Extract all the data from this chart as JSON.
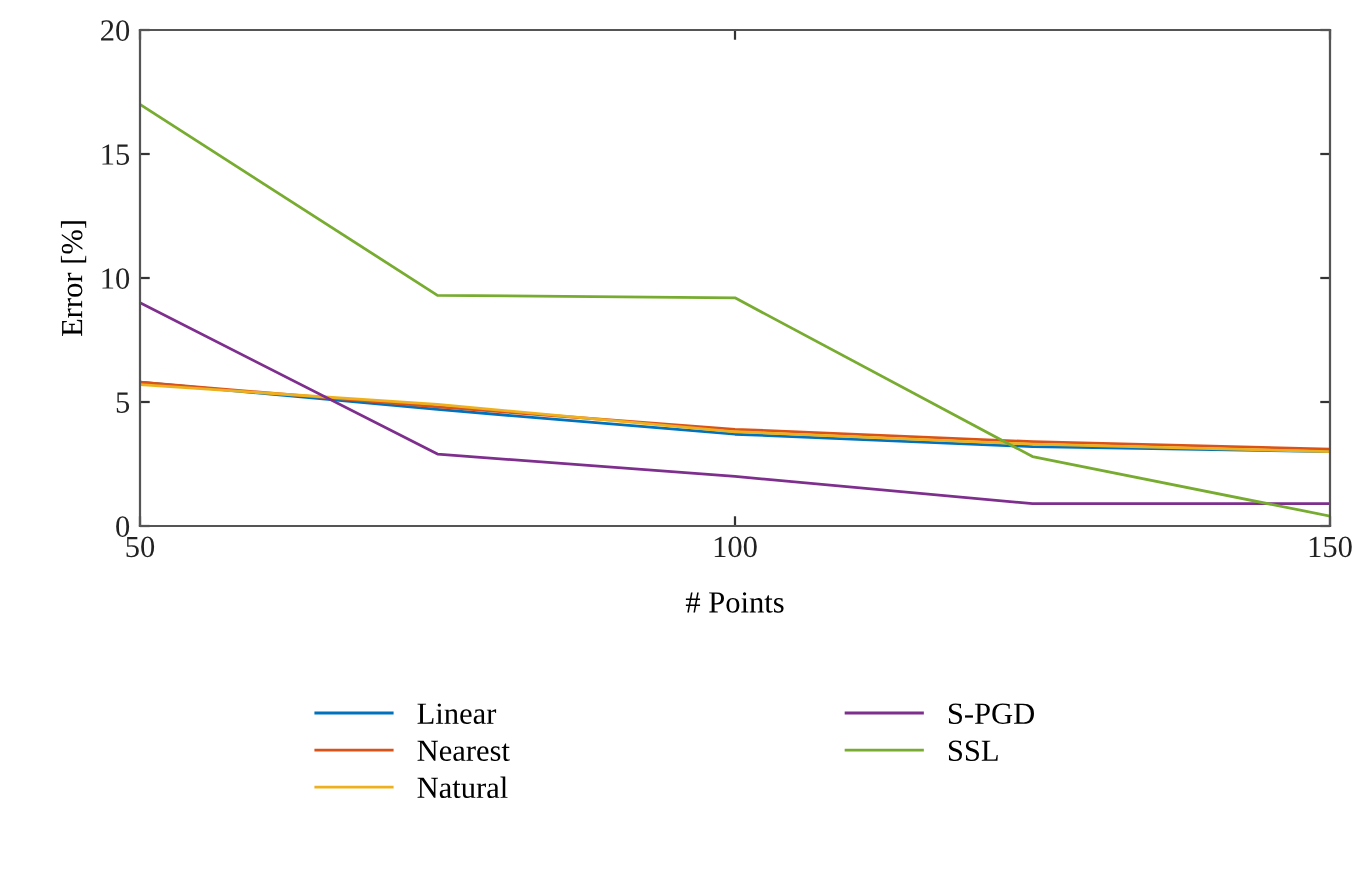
{
  "chart_data": {
    "type": "line",
    "xlabel": "# Points",
    "ylabel": "Error [%]",
    "x": [
      50,
      75,
      100,
      125,
      150
    ],
    "series": [
      {
        "name": "Linear",
        "color": "#0072bd",
        "values": [
          5.8,
          4.7,
          3.7,
          3.2,
          3.0
        ]
      },
      {
        "name": "Nearest",
        "color": "#d95319",
        "values": [
          5.8,
          4.8,
          3.9,
          3.4,
          3.1
        ]
      },
      {
        "name": "Natural",
        "color": "#edb120",
        "values": [
          5.7,
          4.9,
          3.8,
          3.3,
          3.0
        ]
      },
      {
        "name": "S-PGD",
        "color": "#7e2f8e",
        "values": [
          9.0,
          2.9,
          2.0,
          0.9,
          0.9
        ]
      },
      {
        "name": "SSL",
        "color": "#77ac30",
        "values": [
          17.0,
          9.3,
          9.2,
          2.8,
          0.4
        ]
      }
    ],
    "xlim": [
      50,
      150
    ],
    "xticks": [
      50,
      100,
      150
    ],
    "ylim": [
      0,
      20
    ],
    "yticks": [
      0,
      5,
      10,
      15,
      20
    ],
    "grid": false,
    "legend": "bottom",
    "marker": "none",
    "line_style": "solid"
  }
}
